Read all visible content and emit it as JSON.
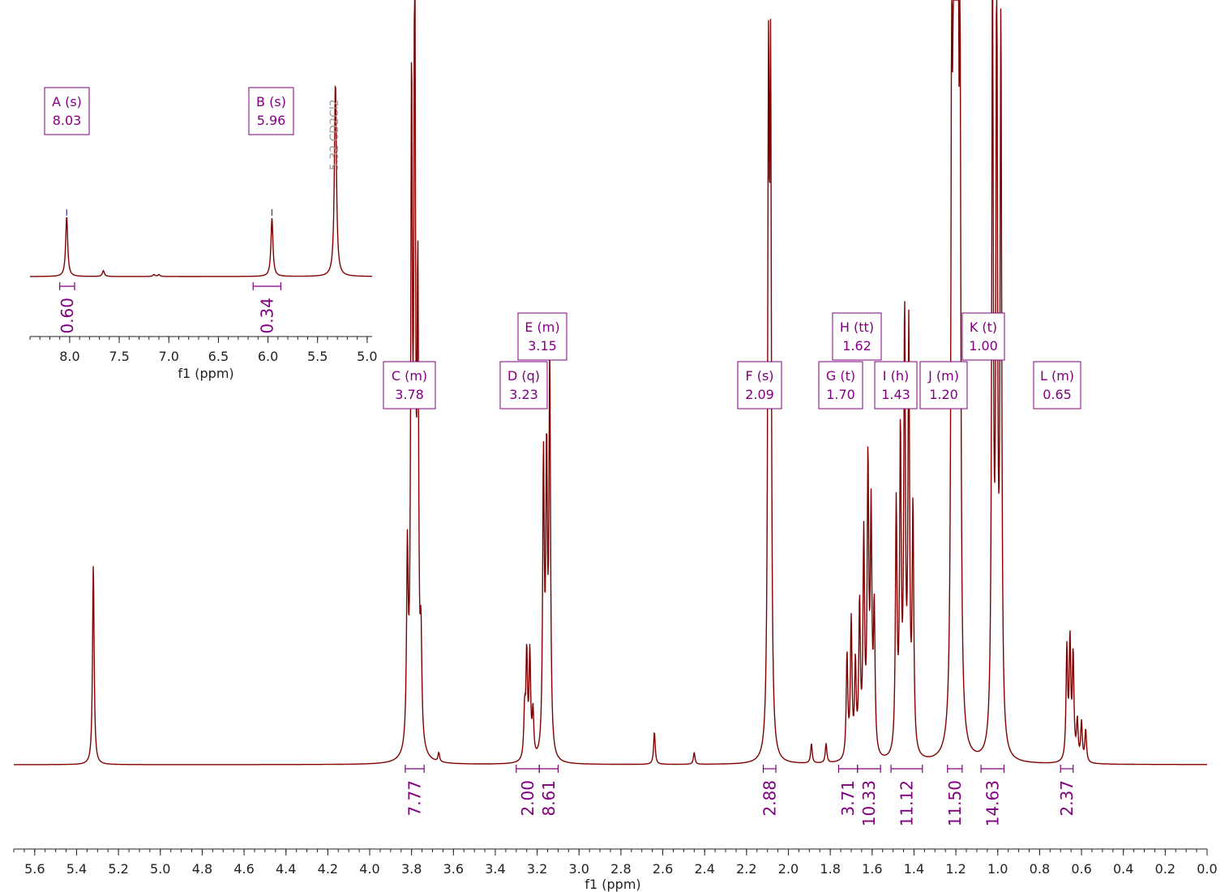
{
  "colors": {
    "spectrum": "#800000",
    "annotation": "#800080",
    "axis": "#222222",
    "solvent_label": "#9a9a9a",
    "peak_marker": "#3333aa"
  },
  "main_axis": {
    "label": "f1 (ppm)",
    "ticks": [
      "5.6",
      "5.4",
      "5.2",
      "5.0",
      "4.8",
      "4.6",
      "4.4",
      "4.2",
      "4.0",
      "3.8",
      "3.6",
      "3.4",
      "3.2",
      "3.0",
      "2.8",
      "2.6",
      "2.4",
      "2.2",
      "2.0",
      "1.8",
      "1.6",
      "1.4",
      "1.2",
      "1.0",
      "0.8",
      "0.6",
      "0.4",
      "0.2",
      "0.0"
    ]
  },
  "inset_axis": {
    "label": "f1 (ppm)",
    "ticks": [
      "8.0",
      "7.5",
      "7.0",
      "6.5",
      "6.0",
      "5.5",
      "5.0"
    ]
  },
  "solvent_label": "5.32 CD2Cl2",
  "peak_labels": [
    {
      "id": "A",
      "line1": "A (s)",
      "line2": "8.03"
    },
    {
      "id": "B",
      "line1": "B (s)",
      "line2": "5.96"
    },
    {
      "id": "C",
      "line1": "C (m)",
      "line2": "3.78"
    },
    {
      "id": "D",
      "line1": "D (q)",
      "line2": "3.23"
    },
    {
      "id": "E",
      "line1": "E (m)",
      "line2": "3.15"
    },
    {
      "id": "F",
      "line1": "F (s)",
      "line2": "2.09"
    },
    {
      "id": "G",
      "line1": "G (t)",
      "line2": "1.70"
    },
    {
      "id": "H",
      "line1": "H (tt)",
      "line2": "1.62"
    },
    {
      "id": "I",
      "line1": "I (h)",
      "line2": "1.43"
    },
    {
      "id": "J",
      "line1": "J (m)",
      "line2": "1.20"
    },
    {
      "id": "K",
      "line1": "K (t)",
      "line2": "1.00"
    },
    {
      "id": "L",
      "line1": "L (m)",
      "line2": "0.65"
    }
  ],
  "chart_data": [
    {
      "type": "line",
      "xlabel": "f1 (ppm)",
      "xlim": [
        5.7,
        0.0
      ],
      "x_reversed": true,
      "peaks": [
        {
          "ppm": 5.32,
          "height": 0.31
        },
        {
          "ppm": 3.82,
          "height": 0.29
        },
        {
          "ppm": 3.8,
          "height": 0.98
        },
        {
          "ppm": 3.785,
          "height": 1.2
        },
        {
          "ppm": 3.77,
          "height": 0.68
        },
        {
          "ppm": 3.755,
          "height": 0.15
        },
        {
          "ppm": 3.67,
          "height": 0.014
        },
        {
          "ppm": 3.26,
          "height": 0.07
        },
        {
          "ppm": 3.25,
          "height": 0.16
        },
        {
          "ppm": 3.235,
          "height": 0.16
        },
        {
          "ppm": 3.22,
          "height": 0.07
        },
        {
          "ppm": 3.17,
          "height": 0.45
        },
        {
          "ppm": 3.155,
          "height": 0.44
        },
        {
          "ppm": 3.14,
          "height": 0.6
        },
        {
          "ppm": 2.64,
          "height": 0.05
        },
        {
          "ppm": 2.45,
          "height": 0.018
        },
        {
          "ppm": 2.095,
          "height": 0.98
        },
        {
          "ppm": 2.085,
          "height": 0.98
        },
        {
          "ppm": 1.89,
          "height": 0.03
        },
        {
          "ppm": 1.82,
          "height": 0.03
        },
        {
          "ppm": 1.72,
          "height": 0.16
        },
        {
          "ppm": 1.7,
          "height": 0.21
        },
        {
          "ppm": 1.68,
          "height": 0.14
        },
        {
          "ppm": 1.66,
          "height": 0.23
        },
        {
          "ppm": 1.64,
          "height": 0.33
        },
        {
          "ppm": 1.62,
          "height": 0.44
        },
        {
          "ppm": 1.605,
          "height": 0.36
        },
        {
          "ppm": 1.59,
          "height": 0.22
        },
        {
          "ppm": 1.485,
          "height": 0.38
        },
        {
          "ppm": 1.465,
          "height": 0.48
        },
        {
          "ppm": 1.445,
          "height": 0.66
        },
        {
          "ppm": 1.425,
          "height": 0.64
        },
        {
          "ppm": 1.405,
          "height": 0.37
        },
        {
          "ppm": 1.22,
          "height": 0.96
        },
        {
          "ppm": 1.21,
          "height": 1.1
        },
        {
          "ppm": 1.2,
          "height": 1.2
        },
        {
          "ppm": 1.19,
          "height": 1.1
        },
        {
          "ppm": 1.18,
          "height": 0.9
        },
        {
          "ppm": 1.025,
          "height": 1.2
        },
        {
          "ppm": 1.005,
          "height": 1.2
        },
        {
          "ppm": 0.985,
          "height": 1.1
        },
        {
          "ppm": 0.67,
          "height": 0.17
        },
        {
          "ppm": 0.655,
          "height": 0.18
        },
        {
          "ppm": 0.64,
          "height": 0.16
        },
        {
          "ppm": 0.62,
          "height": 0.06
        },
        {
          "ppm": 0.6,
          "height": 0.06
        },
        {
          "ppm": 0.58,
          "height": 0.05
        }
      ],
      "integrals": [
        {
          "from": 3.83,
          "to": 3.74,
          "value": "7.77"
        },
        {
          "from": 3.3,
          "to": 3.19,
          "value": "2.00"
        },
        {
          "from": 3.19,
          "to": 3.1,
          "value": "8.61"
        },
        {
          "from": 2.12,
          "to": 2.06,
          "value": "2.88"
        },
        {
          "from": 1.76,
          "to": 1.67,
          "value": "3.71"
        },
        {
          "from": 1.67,
          "to": 1.56,
          "value": "10.33"
        },
        {
          "from": 1.51,
          "to": 1.36,
          "value": "11.12"
        },
        {
          "from": 1.24,
          "to": 1.17,
          "value": "11.50"
        },
        {
          "from": 1.08,
          "to": 0.97,
          "value": "14.63"
        },
        {
          "from": 0.7,
          "to": 0.64,
          "value": "2.37"
        }
      ]
    },
    {
      "type": "line",
      "xlabel": "f1 (ppm)",
      "xlim": [
        8.4,
        4.95
      ],
      "x_reversed": true,
      "peaks": [
        {
          "ppm": 8.03,
          "height": 0.31
        },
        {
          "ppm": 7.66,
          "height": 0.03
        },
        {
          "ppm": 7.15,
          "height": 0.01
        },
        {
          "ppm": 7.1,
          "height": 0.01
        },
        {
          "ppm": 5.96,
          "height": 0.3
        },
        {
          "ppm": 5.32,
          "height": 1.0
        }
      ],
      "integrals": [
        {
          "from": 8.1,
          "to": 7.95,
          "value": "0.60"
        },
        {
          "from": 6.15,
          "to": 5.87,
          "value": "0.34"
        }
      ]
    }
  ]
}
